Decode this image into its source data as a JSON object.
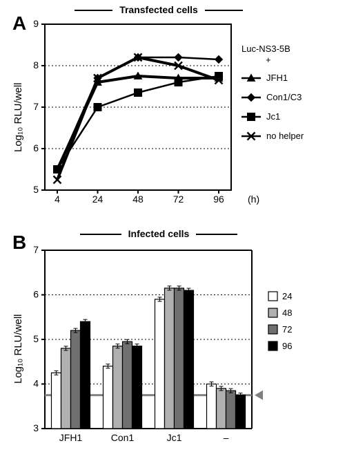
{
  "panelA": {
    "letter": "A",
    "title": "Transfected cells",
    "ylabel": "Log₁₀ RLU/well",
    "xlabel": "(h)",
    "ylim": [
      5,
      9
    ],
    "yticks": [
      5,
      6,
      7,
      8,
      9
    ],
    "xvalues": [
      4,
      24,
      48,
      72,
      96
    ],
    "xticklabels": [
      "4",
      "24",
      "48",
      "72",
      "96"
    ],
    "grid_color": "#000000",
    "background_color": "#ffffff",
    "line_width_thick": 4,
    "line_width_thin": 2.5,
    "series": [
      {
        "name": "JFH1",
        "marker": "triangle",
        "y": [
          5.5,
          7.6,
          7.75,
          7.7,
          7.7
        ],
        "color": "#000000",
        "line_width": 4
      },
      {
        "name": "Con1/C3",
        "marker": "diamond",
        "y": [
          5.5,
          7.7,
          8.2,
          8.2,
          8.15
        ],
        "color": "#000000",
        "line_width": 2.5
      },
      {
        "name": "Jc1",
        "marker": "square",
        "y": [
          5.5,
          7.0,
          7.35,
          7.6,
          7.75
        ],
        "color": "#000000",
        "line_width": 2.5
      },
      {
        "name": "no helper",
        "marker": "x",
        "y": [
          5.25,
          7.7,
          8.2,
          8.0,
          7.65
        ],
        "color": "#000000",
        "line_width": 4
      }
    ],
    "side_label_top": "Luc-NS3-5B",
    "side_label_plus": "+"
  },
  "panelB": {
    "letter": "B",
    "title": "Infected cells",
    "ylabel": "Log₁₀ RLU/well",
    "ylim": [
      3,
      7
    ],
    "yticks": [
      3,
      4,
      5,
      6,
      7
    ],
    "categories": [
      "JFH1",
      "Con1",
      "Jc1",
      "–"
    ],
    "timepoints": [
      "24",
      "48",
      "72",
      "96"
    ],
    "bar_colors": [
      "#ffffff",
      "#b0b0b0",
      "#707070",
      "#000000"
    ],
    "grid_color": "#000000",
    "background_color": "#ffffff",
    "baseline_y": 3.75,
    "baseline_color": "#808080",
    "marker_gray_color": "#808080",
    "values": {
      "JFH1": [
        4.25,
        4.8,
        5.2,
        5.4
      ],
      "Con1": [
        4.4,
        4.85,
        4.95,
        4.85
      ],
      "Jc1": [
        5.9,
        6.15,
        6.15,
        6.1
      ],
      "–": [
        4.0,
        3.9,
        3.85,
        3.75
      ]
    }
  },
  "fonts": {
    "axis_tick": 13,
    "axis_label": 15,
    "panel_letter": 28,
    "title": 14,
    "legend": 13
  }
}
